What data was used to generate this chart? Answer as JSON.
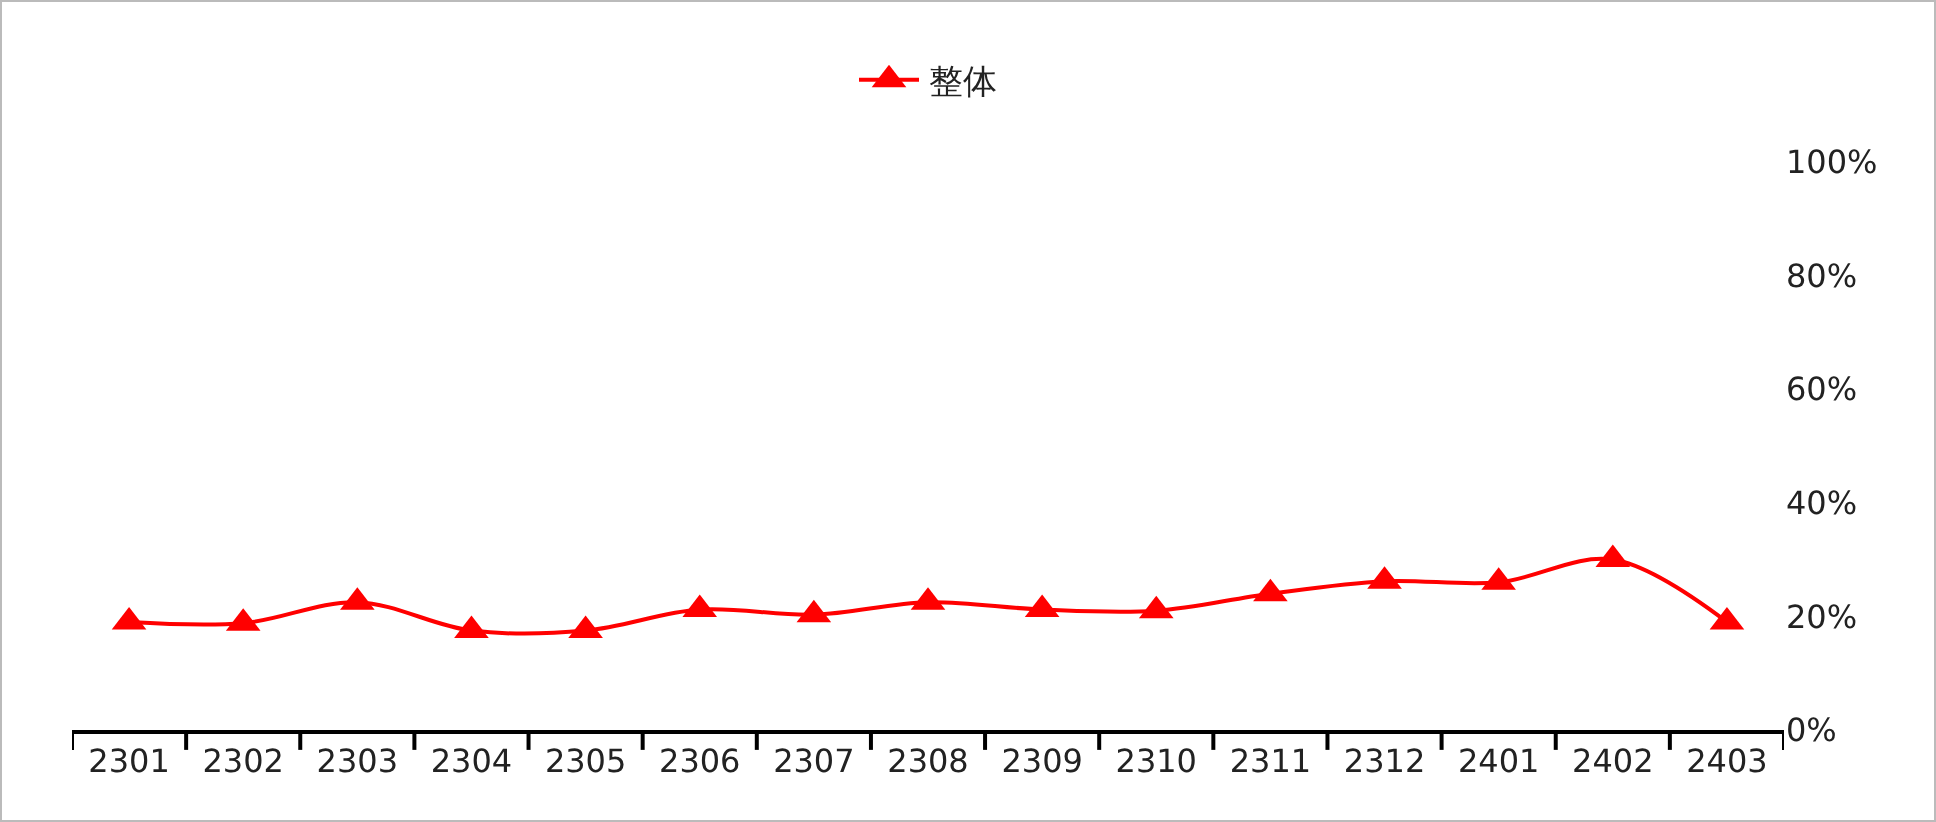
{
  "chart_data": {
    "type": "line",
    "categories": [
      "2301",
      "2302",
      "2303",
      "2304",
      "2305",
      "2306",
      "2307",
      "2308",
      "2309",
      "2310",
      "2311",
      "2312",
      "2401",
      "2402",
      "2403"
    ],
    "series": [
      {
        "name": "整体",
        "color": "#ff0000",
        "values": [
          19,
          18.8,
          22.5,
          17.5,
          17.5,
          21.2,
          20.3,
          22.5,
          21.2,
          21,
          24,
          26.2,
          26,
          30,
          19
        ]
      }
    ],
    "ylim": [
      0,
      100
    ],
    "yticks": [
      {
        "value": 0,
        "label": "0%"
      },
      {
        "value": 20,
        "label": "20%"
      },
      {
        "value": 40,
        "label": "40%"
      },
      {
        "value": 60,
        "label": "60%"
      },
      {
        "value": 80,
        "label": "80%"
      },
      {
        "value": 100,
        "label": "100%"
      }
    ],
    "grid": false,
    "legend": "top",
    "marker": "triangle",
    "line_style": "solid"
  }
}
